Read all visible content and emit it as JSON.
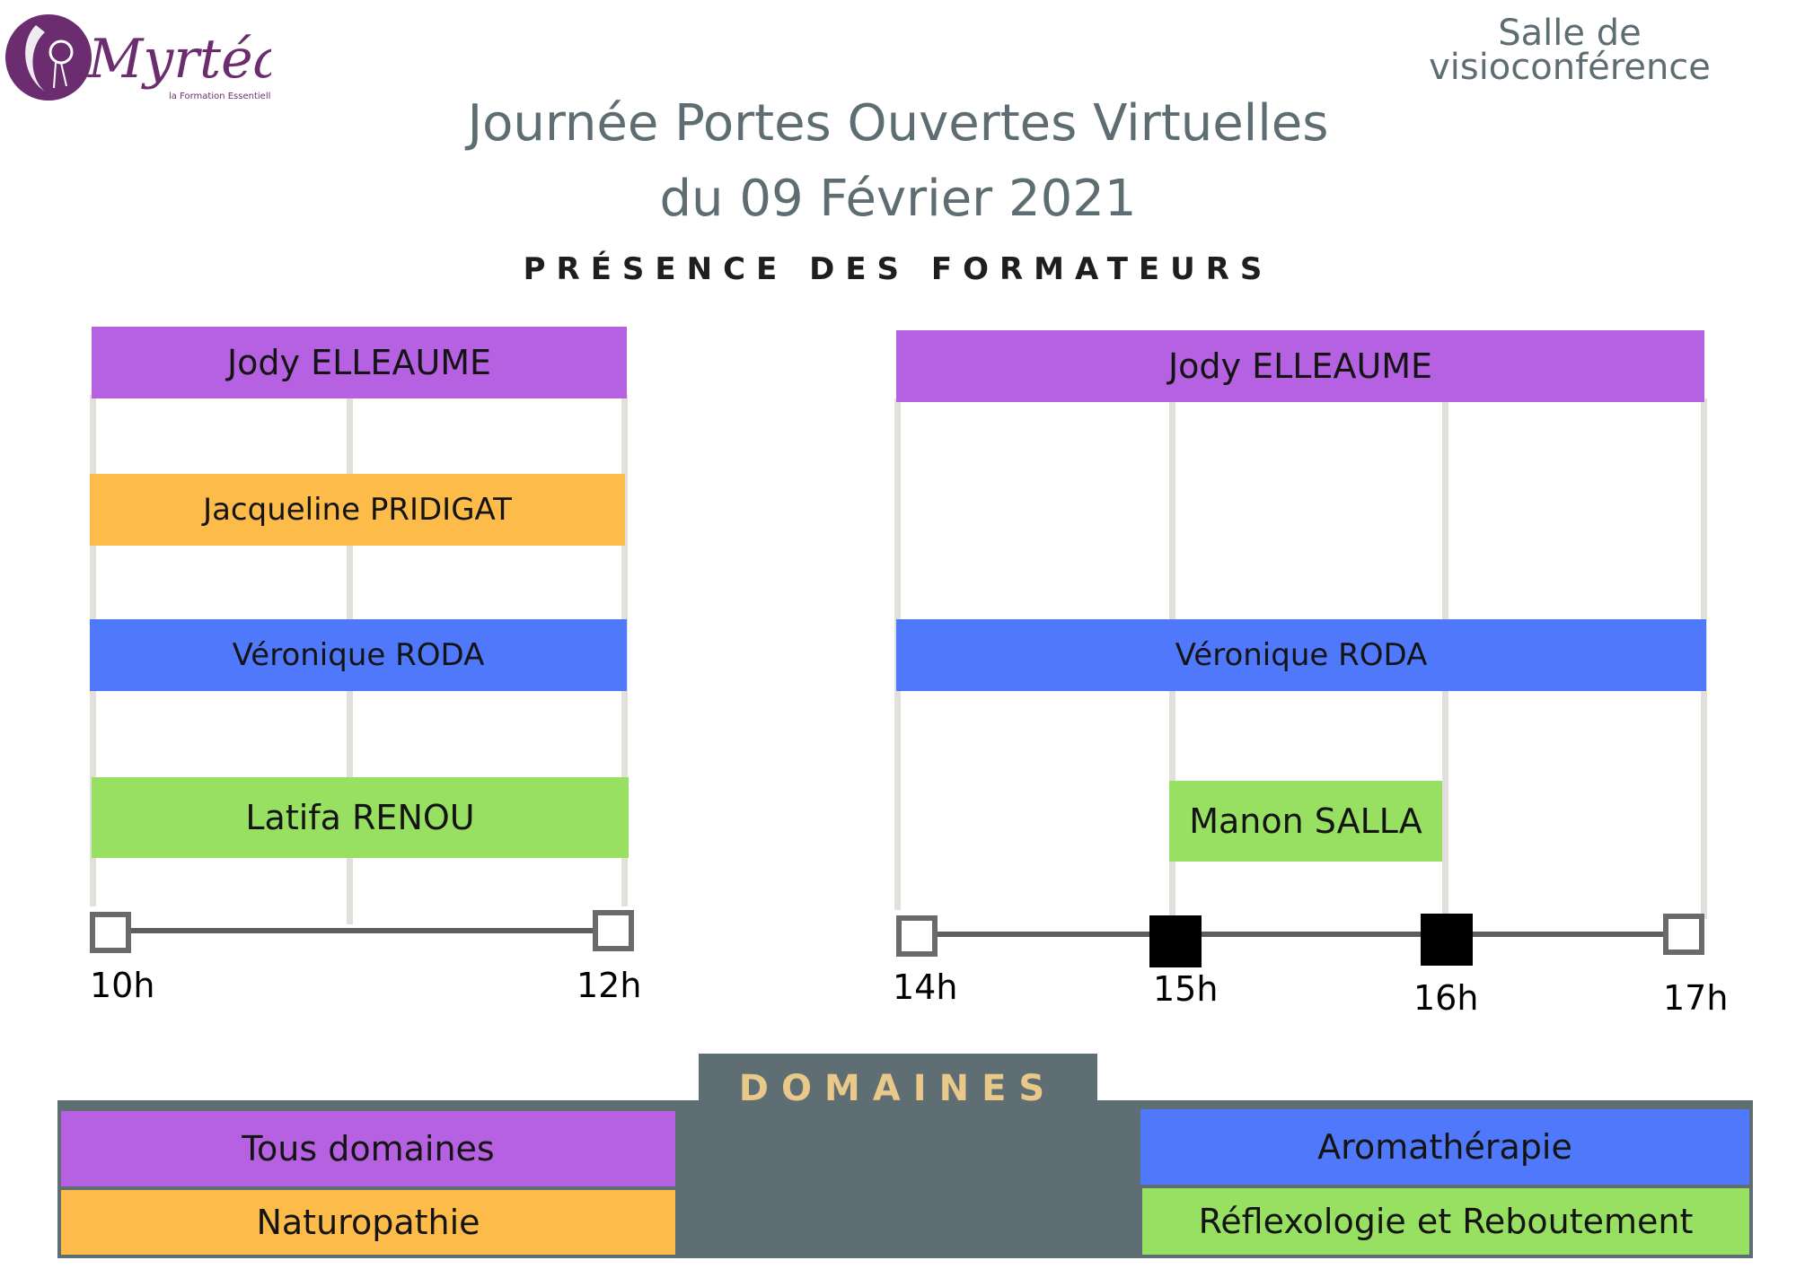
{
  "brand": {
    "name": "Myrtéa",
    "tagline": "la Formation Essentielle",
    "color": "#6b2d6f"
  },
  "header": {
    "room": "Salle de visioconférence",
    "title_line1": "Journée Portes Ouvertes Virtuelles",
    "title_line2": "du 09 Février 2021",
    "subtitle": "PRÉSENCE DES FORMATEURS"
  },
  "chart_data": {
    "type": "gantt",
    "colors": {
      "Tous domaines": "#b660e2",
      "Naturopathie": "#fdbb4a",
      "Aromathérapie": "#4f79fa",
      "Réflexologie et Reboutement": "#98e062"
    },
    "panels": [
      {
        "ticks": [
          "10h",
          "12h"
        ],
        "range": [
          10,
          12
        ],
        "bars": [
          {
            "name": "Jody ELLEAUME",
            "start": 10,
            "end": 12,
            "domain": "Tous domaines"
          },
          {
            "name": "Jacqueline PRIDIGAT",
            "start": 10,
            "end": 12,
            "domain": "Naturopathie"
          },
          {
            "name": "Véronique RODA",
            "start": 10,
            "end": 12,
            "domain": "Aromathérapie"
          },
          {
            "name": "Latifa RENOU",
            "start": 10,
            "end": 12,
            "domain": "Réflexologie et Reboutement"
          }
        ]
      },
      {
        "ticks": [
          "14h",
          "15h",
          "16h",
          "17h"
        ],
        "range": [
          14,
          17
        ],
        "bars": [
          {
            "name": "Jody ELLEAUME",
            "start": 14,
            "end": 17,
            "domain": "Tous domaines"
          },
          {
            "name": "Véronique RODA",
            "start": 14,
            "end": 17,
            "domain": "Aromathérapie"
          },
          {
            "name": "Manon SALLA",
            "start": 15,
            "end": 16,
            "domain": "Réflexologie et Reboutement"
          }
        ]
      }
    ]
  },
  "legend": {
    "title": "DOMAINES",
    "items": [
      {
        "label": "Tous domaines",
        "color": "#b660e2"
      },
      {
        "label": "Naturopathie",
        "color": "#fdbb4a"
      },
      {
        "label": "Aromathérapie",
        "color": "#4f79fa"
      },
      {
        "label": "Réflexologie et Reboutement",
        "color": "#98e062"
      }
    ]
  }
}
